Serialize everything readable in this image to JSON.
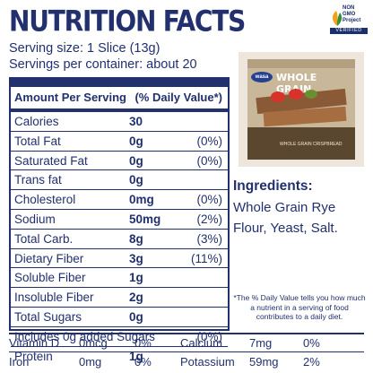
{
  "header": {
    "title": "NUTRITION FACTS",
    "serving_size": "Serving size: 1 Slice (13g)",
    "servings_per_container": "Servings per container: about 20"
  },
  "badge": {
    "label_lines": [
      "NON",
      "GMO",
      "Project"
    ],
    "verified": "VERIFIED"
  },
  "table": {
    "col_left": "Amount Per Serving",
    "col_right": "(% Daily Value*)",
    "rows": [
      {
        "name": "Calories",
        "amount": "30",
        "dv": ""
      },
      {
        "name": "Total Fat",
        "amount": "0g",
        "dv": "(0%)"
      },
      {
        "name": "Saturated Fat",
        "amount": "0g",
        "dv": "(0%)"
      },
      {
        "name": "Trans fat",
        "amount": "0g",
        "dv": ""
      },
      {
        "name": "Cholesterol",
        "amount": "0mg",
        "dv": "(0%)"
      },
      {
        "name": "Sodium",
        "amount": "50mg",
        "dv": "(2%)"
      },
      {
        "name": "Total Carb.",
        "amount": "8g",
        "dv": "(3%)"
      },
      {
        "name": "Dietary Fiber",
        "amount": "3g",
        "dv": "(11%)"
      },
      {
        "name": "Soluble Fiber",
        "amount": "1g",
        "dv": ""
      },
      {
        "name": "Insoluble Fiber",
        "amount": "2g",
        "dv": ""
      },
      {
        "name": "Total Sugars",
        "amount": "0g",
        "dv": ""
      },
      {
        "name": "Includes 0g added Sugars",
        "amount": "",
        "dv": "(0%)"
      },
      {
        "name": "Protein",
        "amount": "1g",
        "dv": ""
      }
    ]
  },
  "product": {
    "brand": "wasa",
    "name": "WHOLE GRAIN",
    "subtitle": "WHOLE GRAIN CRISPBREAD"
  },
  "ingredients": {
    "heading": "Ingredients:",
    "text": "Whole Grain Rye Flour, Yeast, Salt."
  },
  "footnote": "*The % Daily Value tells you how much a nutrient in a serving of food contributes to a daily diet.",
  "minerals": {
    "row1": [
      {
        "name": "Vitamin D",
        "amount": "0mcg",
        "dv": "0%"
      },
      {
        "name": "Calcium",
        "amount": "7mg",
        "dv": "0%"
      }
    ],
    "row2": [
      {
        "name": "Iron",
        "amount": "0mg",
        "dv": "0%"
      },
      {
        "name": "Potassium",
        "amount": "59mg",
        "dv": "2%"
      }
    ]
  },
  "colors": {
    "navy": "#22306e",
    "background": "#ffffff"
  }
}
